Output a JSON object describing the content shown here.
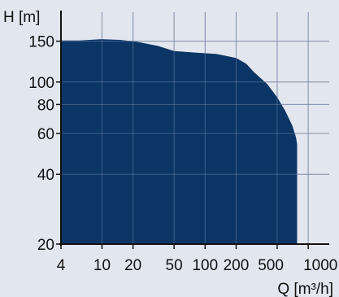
{
  "chart_data": {
    "type": "area",
    "xlabel": "Q [m³/h]",
    "ylabel": "H [m]",
    "x_scale": "log",
    "y_scale": "log",
    "xlim": [
      4,
      1600
    ],
    "ylim": [
      20,
      200
    ],
    "x_ticks": [
      4,
      10,
      20,
      50,
      100,
      200,
      500,
      1000
    ],
    "x_tick_labels": [
      "4",
      "10",
      "20",
      "50",
      "100",
      "200",
      "500",
      "1000"
    ],
    "y_ticks": [
      20,
      40,
      60,
      80,
      100,
      150
    ],
    "y_tick_labels": [
      "20",
      "40",
      "60",
      "80",
      "100",
      "150"
    ],
    "x_grid": [
      4,
      10,
      20,
      50,
      100,
      200,
      500,
      1000
    ],
    "y_grid": [
      20,
      40,
      60,
      80,
      100,
      150
    ],
    "grid": true,
    "series": [
      {
        "envelope": [
          {
            "x": 4,
            "y": 151
          },
          {
            "x": 6,
            "y": 151
          },
          {
            "x": 10,
            "y": 153
          },
          {
            "x": 15,
            "y": 152
          },
          {
            "x": 22,
            "y": 149
          },
          {
            "x": 35,
            "y": 143
          },
          {
            "x": 50,
            "y": 136
          },
          {
            "x": 80,
            "y": 134
          },
          {
            "x": 130,
            "y": 132
          },
          {
            "x": 200,
            "y": 127
          },
          {
            "x": 250,
            "y": 120
          },
          {
            "x": 300,
            "y": 110
          },
          {
            "x": 400,
            "y": 98
          },
          {
            "x": 500,
            "y": 86
          },
          {
            "x": 600,
            "y": 75
          },
          {
            "x": 700,
            "y": 65
          },
          {
            "x": 760,
            "y": 58
          },
          {
            "x": 780,
            "y": 54
          },
          {
            "x": 780,
            "y": 20
          }
        ]
      }
    ],
    "colors": {
      "background": "#e2e6ef",
      "fill": "#0b3565",
      "grid": "#9fa6b8",
      "axis": "#111111"
    }
  }
}
